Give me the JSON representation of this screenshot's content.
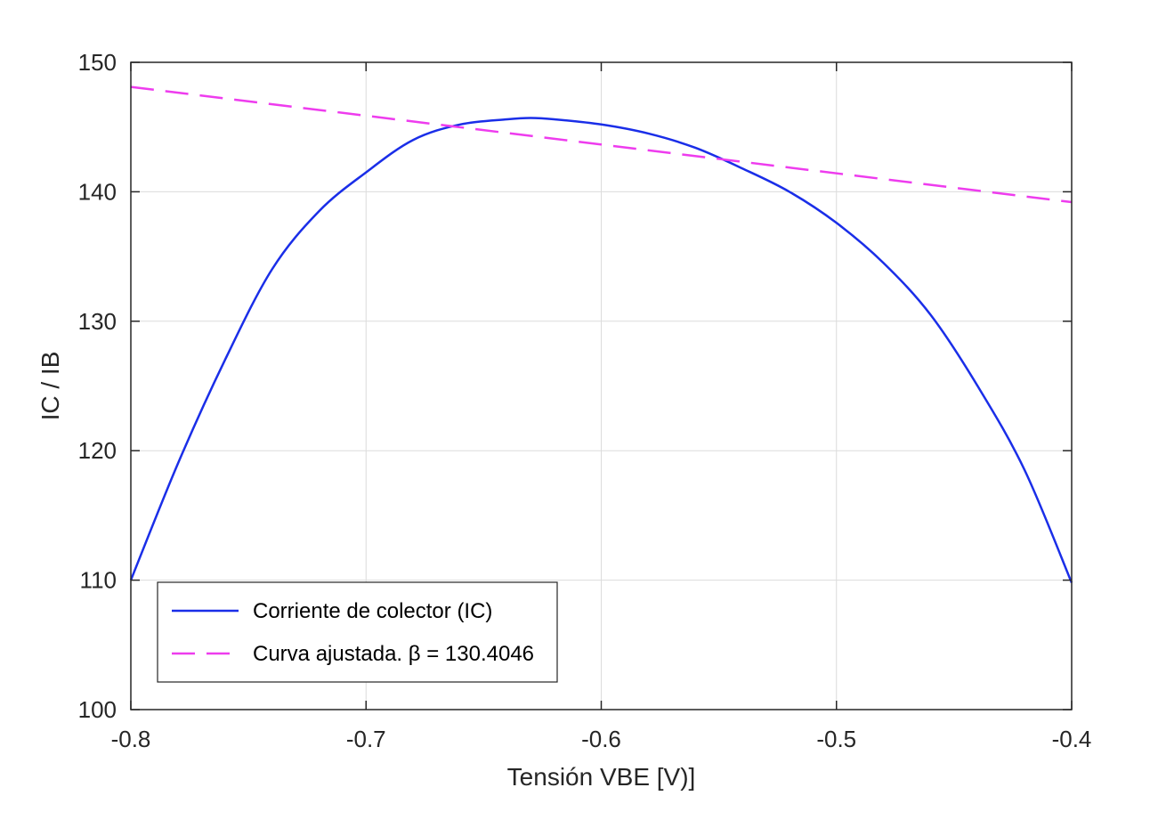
{
  "chart_data": {
    "type": "line",
    "title": "",
    "xlabel": "Tensión VBE [V)]",
    "ylabel": "IC / IB",
    "xlim": [
      -0.8,
      -0.4
    ],
    "ylim": [
      100,
      150
    ],
    "grid": true,
    "legend_position": "bottom-left",
    "x_ticks": [
      -0.8,
      -0.7,
      -0.6,
      -0.5,
      -0.4
    ],
    "x_tick_labels": [
      "-0.8",
      "-0.7",
      "-0.6",
      "-0.5",
      "-0.4"
    ],
    "y_ticks": [
      100,
      110,
      120,
      130,
      140,
      150
    ],
    "y_tick_labels": [
      "100",
      "110",
      "120",
      "130",
      "140",
      "150"
    ],
    "series": [
      {
        "name": "Corriente de colector (IC)",
        "color": "#1a2ee8",
        "style": "solid",
        "x": [
          -0.8,
          -0.78,
          -0.76,
          -0.74,
          -0.72,
          -0.7,
          -0.68,
          -0.66,
          -0.64,
          -0.63,
          -0.62,
          -0.6,
          -0.58,
          -0.56,
          -0.54,
          -0.52,
          -0.5,
          -0.48,
          -0.46,
          -0.44,
          -0.42,
          -0.4
        ],
        "y": [
          110.0,
          119.0,
          127.0,
          134.0,
          138.5,
          141.5,
          144.0,
          145.2,
          145.6,
          145.7,
          145.6,
          145.2,
          144.5,
          143.4,
          141.8,
          140.0,
          137.6,
          134.5,
          130.5,
          125.0,
          118.5,
          109.8
        ]
      },
      {
        "name": "Curva ajustada. β = 130.4046",
        "color": "#ee3cee",
        "style": "dashed",
        "x": [
          -0.8,
          -0.4
        ],
        "y": [
          148.1,
          139.2
        ]
      }
    ]
  }
}
